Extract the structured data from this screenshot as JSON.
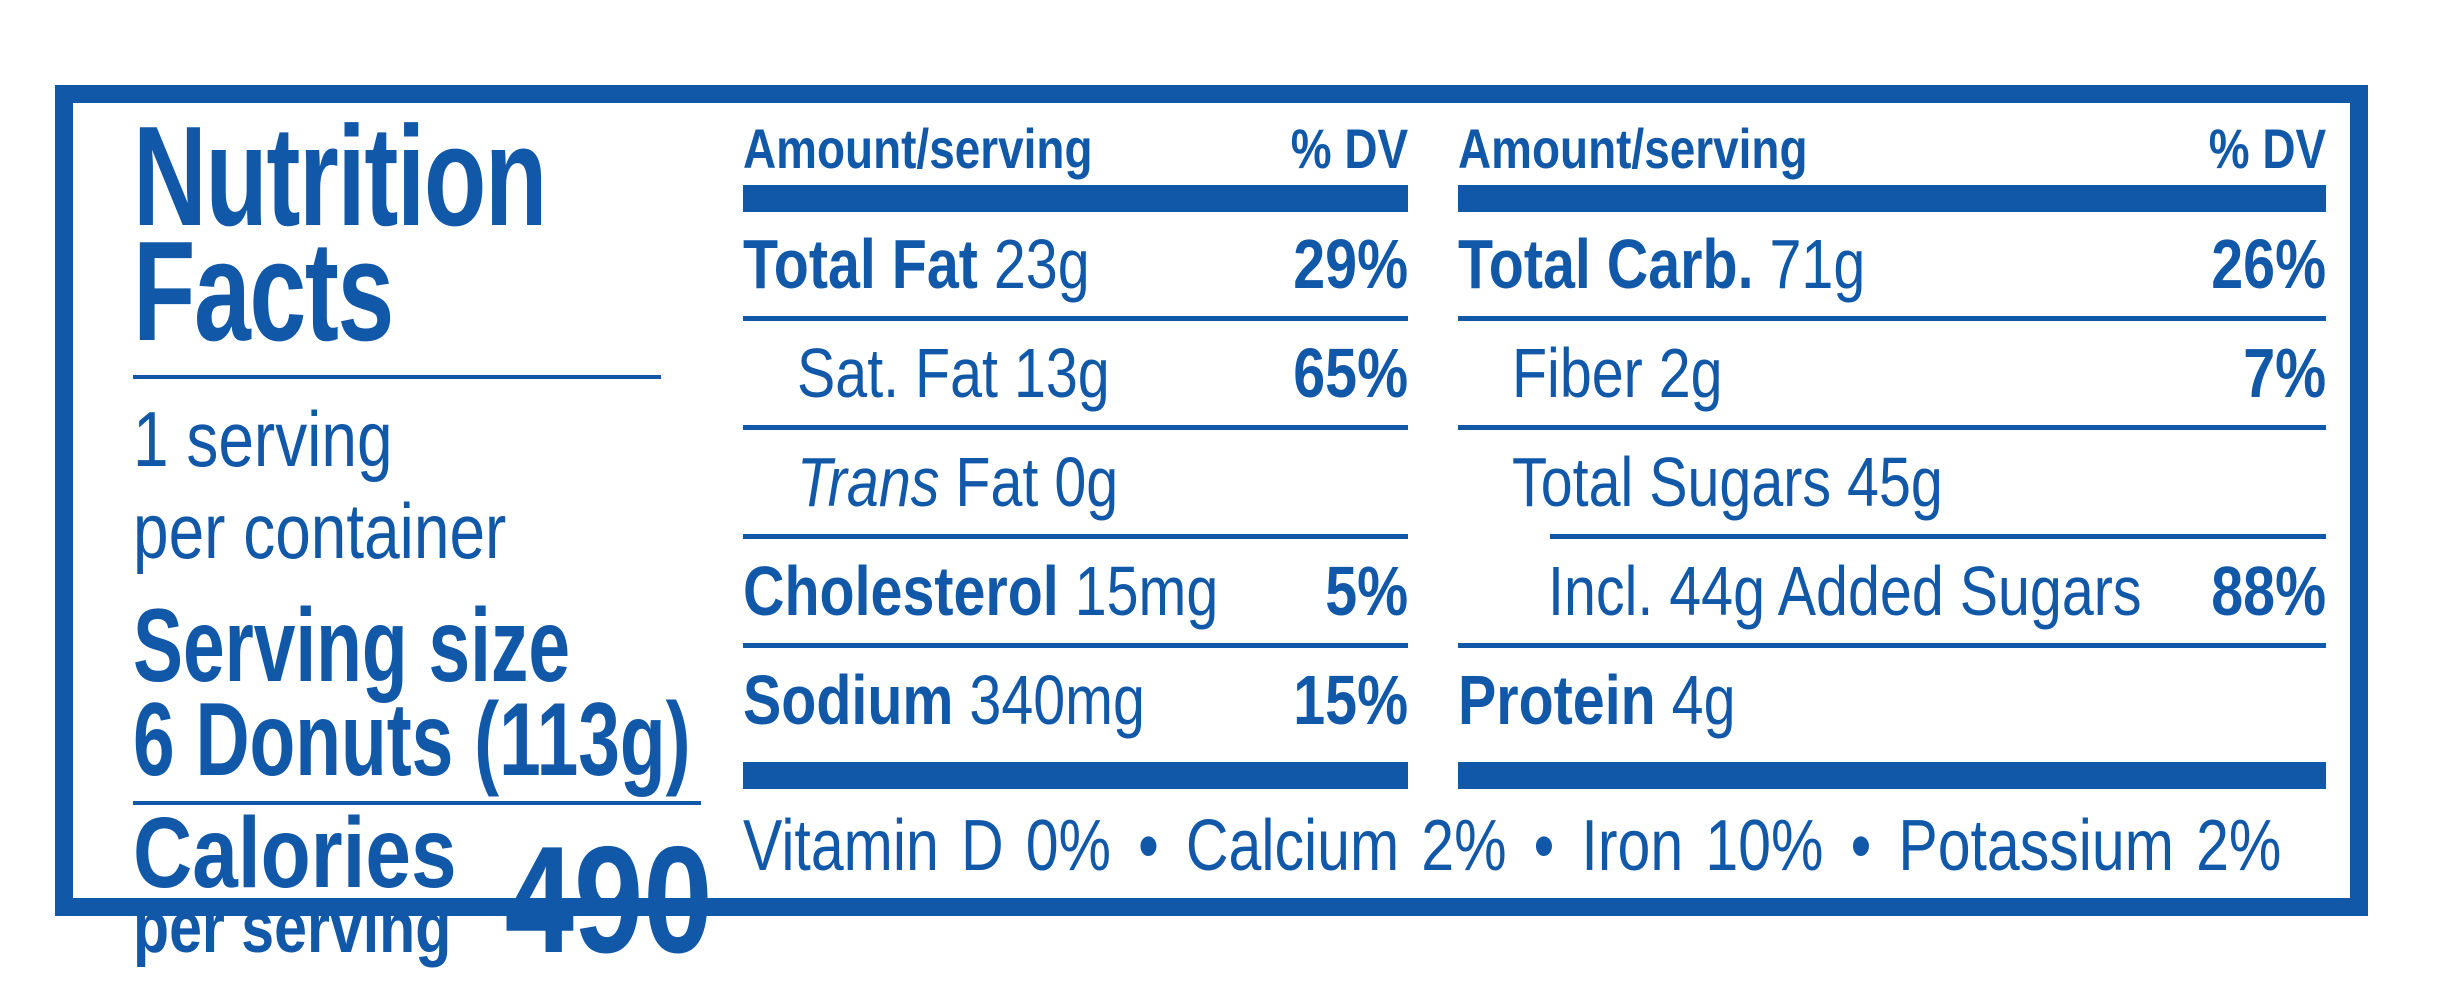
{
  "label": {
    "title_line1": "Nutrition",
    "title_line2": "Facts",
    "servings_line1": "1 serving",
    "servings_line2": "per container",
    "serving_size_label": "Serving size",
    "serving_size_value": "6 Donuts (113g)",
    "calories_label": "Calories",
    "calories_sub": "per serving",
    "calories_value": "490"
  },
  "columns": [
    {
      "header_amount": "Amount/serving",
      "header_dv": "% DV",
      "rows": [
        {
          "name": "Total Fat",
          "amount": "23g",
          "dv": "29%"
        },
        {
          "name": "Sat. Fat",
          "amount": "13g",
          "dv": "65%"
        },
        {
          "name_italic": "Trans",
          "name": "Fat",
          "amount": "0g",
          "dv": ""
        },
        {
          "name": "Cholesterol",
          "amount": "15mg",
          "dv": "5%"
        },
        {
          "name": "Sodium",
          "amount": "340mg",
          "dv": "15%"
        }
      ]
    },
    {
      "header_amount": "Amount/serving",
      "header_dv": "% DV",
      "rows": [
        {
          "name": "Total Carb.",
          "amount": "71g",
          "dv": "26%"
        },
        {
          "name": "Fiber",
          "amount": "2g",
          "dv": "7%"
        },
        {
          "name": "Total Sugars",
          "amount": "45g",
          "dv": ""
        },
        {
          "name": "Incl. 44g Added Sugars",
          "amount": "",
          "dv": "88%"
        },
        {
          "name": "Protein",
          "amount": "4g",
          "dv": ""
        }
      ]
    }
  ],
  "footer": {
    "separator": "•",
    "items": [
      "Vitamin D 0%",
      "Calcium 2%",
      "Iron 10%",
      "Potassium 2%"
    ]
  },
  "colors": {
    "brand_blue": "#1158a8",
    "background": "#ffffff"
  }
}
